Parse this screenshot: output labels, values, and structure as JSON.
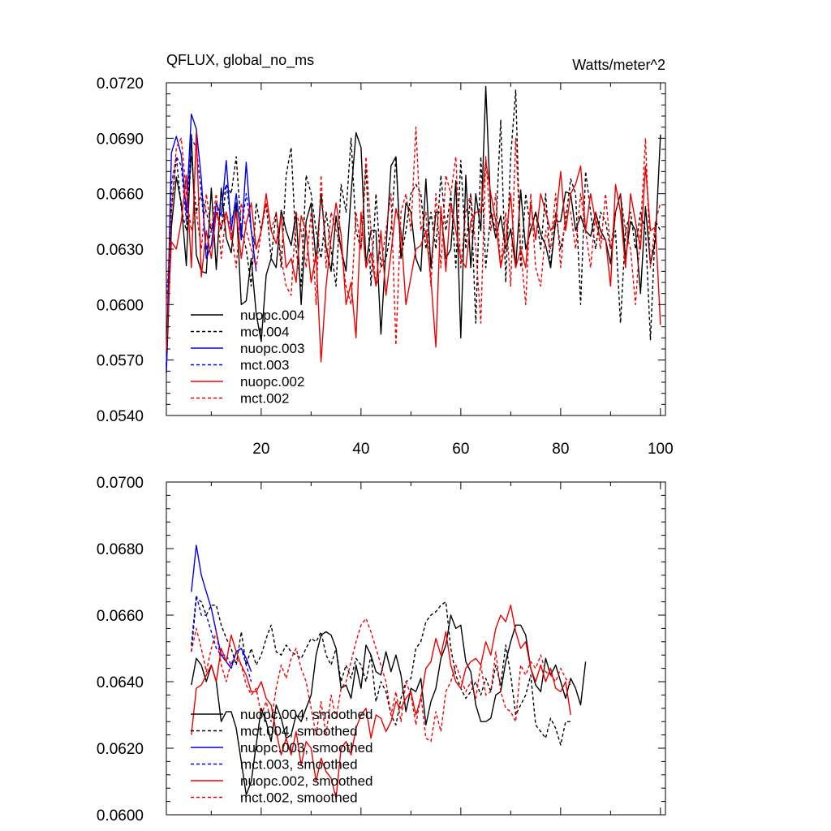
{
  "chart_data": [
    {
      "type": "line",
      "title_left": "QFLUX, global_no_ms",
      "title_right": "Watts/meter^2",
      "xlim": [
        1,
        101
      ],
      "ylim": [
        0.054,
        0.072
      ],
      "yticks": [
        "0.0540",
        "0.0570",
        "0.0600",
        "0.0630",
        "0.0660",
        "0.0690",
        "0.0720"
      ],
      "xticks": [
        "20",
        "40",
        "60",
        "80",
        "100"
      ],
      "legend": [
        "nuopc.004",
        "mct.004",
        "nuopc.003",
        "mct.003",
        "nuopc.002",
        "mct.002"
      ],
      "series": [
        {
          "name": "nuopc.004",
          "color": "#000000",
          "dash": false,
          "x_start": 1,
          "values": [
            0.0563,
            0.0642,
            0.0669,
            0.0655,
            0.0621,
            0.0692,
            0.0627,
            0.0618,
            0.0617,
            0.0663,
            0.0619,
            0.0663,
            0.0636,
            0.0628,
            0.0655,
            0.06,
            0.0602,
            0.0625,
            0.0595,
            0.058,
            0.0616,
            0.0625,
            0.062,
            0.0651,
            0.064,
            0.0632,
            0.065,
            0.06,
            0.0645,
            0.0655,
            0.0623,
            0.066,
            0.0631,
            0.0618,
            0.0648,
            0.063,
            0.0618,
            0.066,
            0.0693,
            0.0685,
            0.0622,
            0.064,
            0.064,
            0.0584,
            0.063,
            0.0675,
            0.068,
            0.0625,
            0.0655,
            0.065,
            0.0625,
            0.0618,
            0.0668,
            0.062,
            0.065,
            0.065,
            0.0625,
            0.063,
            0.0667,
            0.0582,
            0.067,
            0.062,
            0.066,
            0.064,
            0.0718,
            0.065,
            0.0636,
            0.0648,
            0.063,
            0.0641,
            0.062,
            0.0662,
            0.063,
            0.064,
            0.065,
            0.0638,
            0.0632,
            0.062,
            0.0645,
            0.0645,
            0.0661,
            0.066,
            0.064,
            0.0648,
            0.064,
            0.0637,
            0.065,
            0.064,
            0.0635,
            0.0622,
            0.065,
            0.066,
            0.0625,
            0.0645,
            0.064,
            0.0606,
            0.0653,
            0.0622,
            0.0635,
            0.0692
          ]
        },
        {
          "name": "mct.004",
          "color": "#000000",
          "dash": true,
          "x_start": 1,
          "values": [
            0.0567,
            0.065,
            0.068,
            0.0652,
            0.064,
            0.068,
            0.065,
            0.066,
            0.065,
            0.064,
            0.065,
            0.064,
            0.0665,
            0.066,
            0.068,
            0.064,
            0.063,
            0.061,
            0.0655,
            0.064,
            0.0655,
            0.0625,
            0.065,
            0.062,
            0.067,
            0.0685,
            0.063,
            0.061,
            0.067,
            0.066,
            0.064,
            0.0625,
            0.065,
            0.063,
            0.061,
            0.0665,
            0.065,
            0.069,
            0.064,
            0.063,
            0.0675,
            0.061,
            0.066,
            0.062,
            0.0625,
            0.064,
            0.068,
            0.0625,
            0.064,
            0.066,
            0.0665,
            0.066,
            0.063,
            0.065,
            0.063,
            0.067,
            0.064,
            0.066,
            0.062,
            0.0678,
            0.063,
            0.066,
            0.059,
            0.068,
            0.062,
            0.065,
            0.064,
            0.07,
            0.0612,
            0.068,
            0.0716,
            0.062,
            0.066,
            0.064,
            0.065,
            0.063,
            0.066,
            0.062,
            0.065,
            0.063,
            0.0645,
            0.0668,
            0.066,
            0.06,
            0.0672,
            0.065,
            0.063,
            0.065,
            0.0645,
            0.063,
            0.064,
            0.059,
            0.064,
            0.065,
            0.063,
            0.065,
            0.064,
            0.0581,
            0.0645,
            0.064
          ]
        },
        {
          "name": "nuopc.003",
          "color": "#0000ee",
          "dash": false,
          "x_start": 1,
          "values": [
            0.0565,
            0.0682,
            0.0691,
            0.0681,
            0.065,
            0.0703,
            0.0695,
            0.0668,
            0.0625,
            0.0632,
            0.0655,
            0.0648,
            0.0678,
            0.064,
            0.066,
            0.0635,
            0.0677,
            0.064,
            0.0618
          ]
        },
        {
          "name": "mct.003",
          "color": "#0000ee",
          "dash": true,
          "x_start": 1,
          "values": [
            0.0567,
            0.0665,
            0.068,
            0.0675,
            0.0645,
            0.069,
            0.0685,
            0.066,
            0.063,
            0.064,
            0.065,
            0.0655,
            0.0665,
            0.0645,
            0.0655,
            0.064,
            0.066,
            0.064,
            0.063
          ]
        },
        {
          "name": "nuopc.002",
          "color": "#ee0000",
          "dash": false,
          "x_start": 1,
          "values": [
            0.0575,
            0.0634,
            0.063,
            0.0645,
            0.067,
            0.062,
            0.0693,
            0.0615,
            0.064,
            0.0625,
            0.065,
            0.0642,
            0.065,
            0.0635,
            0.065,
            0.0625,
            0.0644,
            0.0655,
            0.063,
            0.064,
            0.066,
            0.064,
            0.0633,
            0.0648,
            0.062,
            0.0625,
            0.0612,
            0.0648,
            0.064,
            0.0612,
            0.0627,
            0.0569,
            0.061,
            0.0636,
            0.0655,
            0.0638,
            0.06,
            0.0612,
            0.0582,
            0.065,
            0.062,
            0.0628,
            0.061,
            0.064,
            0.0605,
            0.0628,
            0.0652,
            0.064,
            0.06,
            0.0615,
            0.063,
            0.0632,
            0.064,
            0.0614,
            0.0577,
            0.0653,
            0.0618,
            0.0655,
            0.064,
            0.0625,
            0.062,
            0.0645,
            0.065,
            0.065,
            0.0678,
            0.066,
            0.0645,
            0.062,
            0.0635,
            0.066,
            0.062,
            0.063,
            0.062,
            0.0655,
            0.0635,
            0.066,
            0.065,
            0.064,
            0.0645,
            0.0672,
            0.064,
            0.066,
            0.0665,
            0.0675,
            0.064,
            0.066,
            0.0645,
            0.0636,
            0.0635,
            0.061,
            0.0665,
            0.065,
            0.062,
            0.066,
            0.0645,
            0.063,
            0.0675,
            0.064,
            0.0642,
            0.0589
          ]
        },
        {
          "name": "mct.002",
          "color": "#ee0000",
          "dash": true,
          "x_start": 1,
          "values": [
            0.06,
            0.065,
            0.0685,
            0.069,
            0.066,
            0.064,
            0.065,
            0.063,
            0.066,
            0.064,
            0.066,
            0.0625,
            0.065,
            0.064,
            0.062,
            0.0655,
            0.064,
            0.063,
            0.062,
            0.064,
            0.0655,
            0.064,
            0.065,
            0.0625,
            0.061,
            0.0605,
            0.065,
            0.064,
            0.062,
            0.065,
            0.06,
            0.067,
            0.062,
            0.065,
            0.064,
            0.063,
            0.061,
            0.06,
            0.065,
            0.063,
            0.068,
            0.064,
            0.061,
            0.062,
            0.064,
            0.066,
            0.0578,
            0.065,
            0.066,
            0.064,
            0.0696,
            0.064,
            0.065,
            0.061,
            0.066,
            0.062,
            0.067,
            0.066,
            0.068,
            0.062,
            0.065,
            0.066,
            0.063,
            0.059,
            0.068,
            0.064,
            0.066,
            0.062,
            0.065,
            0.061,
            0.069,
            0.063,
            0.06,
            0.066,
            0.062,
            0.061,
            0.064,
            0.063,
            0.066,
            0.062,
            0.065,
            0.065,
            0.063,
            0.066,
            0.064,
            0.062,
            0.065,
            0.063,
            0.066,
            0.063,
            0.065,
            0.066,
            0.064,
            0.063,
            0.06,
            0.064,
            0.069,
            0.062,
            0.0645,
            0.0655
          ]
        }
      ]
    },
    {
      "type": "line",
      "xlim": [
        1,
        101
      ],
      "ylim": [
        0.06,
        0.07
      ],
      "yticks": [
        "0.0600",
        "0.0620",
        "0.0640",
        "0.0660",
        "0.0680",
        "0.0700"
      ],
      "legend": [
        "nuopc.004, smoothed",
        "mct.004, smoothed",
        "nuopc.003, smoothed",
        "mct.003, smoothed",
        "nuopc.002, smoothed",
        "mct.002, smoothed"
      ],
      "series": [
        {
          "name": "nuopc.004, smoothed",
          "color": "#000000",
          "dash": false,
          "x_start": 6,
          "values": [
            0.0639,
            0.0647,
            0.0645,
            0.064,
            0.0645,
            0.064,
            0.0628,
            0.0631,
            0.0631,
            0.0626,
            0.0616,
            0.0606,
            0.061,
            0.0621,
            0.0632,
            0.0628,
            0.0622,
            0.0633,
            0.0629,
            0.0623,
            0.0624,
            0.063,
            0.0628,
            0.0632,
            0.0636,
            0.0648,
            0.0654,
            0.0655,
            0.0654,
            0.065,
            0.0638,
            0.0639,
            0.0635,
            0.0645,
            0.0638,
            0.0651,
            0.0648,
            0.0643,
            0.0642,
            0.0649,
            0.0643,
            0.0648,
            0.0642,
            0.0631,
            0.0638,
            0.0637,
            0.0641,
            0.0627,
            0.0634,
            0.0638,
            0.0647,
            0.0651,
            0.066,
            0.0656,
            0.0657,
            0.0646,
            0.0643,
            0.0633,
            0.0628,
            0.0628,
            0.0629,
            0.0636,
            0.0637,
            0.0646,
            0.0652,
            0.0657,
            0.0657,
            0.0654,
            0.0644,
            0.0639,
            0.0637,
            0.0647,
            0.0642,
            0.0645,
            0.064,
            0.0635,
            0.0641,
            0.0638,
            0.0633,
            0.0646
          ]
        },
        {
          "name": "mct.004, smoothed",
          "color": "#000000",
          "dash": true,
          "x_start": 6,
          "values": [
            0.0649,
            0.0665,
            0.0664,
            0.066,
            0.0663,
            0.0663,
            0.0657,
            0.0653,
            0.065,
            0.0645,
            0.0655,
            0.0645,
            0.065,
            0.0645,
            0.0648,
            0.0653,
            0.0657,
            0.0649,
            0.0648,
            0.0651,
            0.0649,
            0.0648,
            0.0647,
            0.065,
            0.0653,
            0.0652,
            0.0655,
            0.0648,
            0.0645,
            0.065,
            0.064,
            0.0645,
            0.0641,
            0.0647,
            0.0645,
            0.064,
            0.0648,
            0.0634,
            0.064,
            0.0637,
            0.063,
            0.0627,
            0.0635,
            0.064,
            0.0641,
            0.065,
            0.0652,
            0.0658,
            0.066,
            0.0661,
            0.0663,
            0.0664,
            0.065,
            0.0642,
            0.0638,
            0.0635,
            0.0637,
            0.064,
            0.0636,
            0.0641,
            0.0637,
            0.0645,
            0.0639,
            0.0651,
            0.0642,
            0.063,
            0.0633,
            0.0636,
            0.0642,
            0.0627,
            0.0625,
            0.0623,
            0.0629,
            0.0626,
            0.0621,
            0.0628,
            0.0628
          ]
        },
        {
          "name": "nuopc.003, smoothed",
          "color": "#0000ee",
          "dash": false,
          "x_start": 6,
          "values": [
            0.0667,
            0.0681,
            0.0672,
            0.0667,
            0.0662,
            0.0655,
            0.0648,
            0.0646,
            0.0644,
            0.0649,
            0.065,
            0.0647,
            0.0643
          ]
        },
        {
          "name": "mct.003, smoothed",
          "color": "#0000ee",
          "dash": true,
          "x_start": 6,
          "values": [
            0.0651,
            0.0666,
            0.066,
            0.066,
            0.0655,
            0.065,
            0.0648,
            0.0648,
            0.0645,
            0.0649,
            0.065,
            0.0645,
            0.064
          ]
        },
        {
          "name": "nuopc.002, smoothed",
          "color": "#ee0000",
          "dash": false,
          "x_start": 6,
          "values": [
            0.0624,
            0.0638,
            0.0639,
            0.0642,
            0.0645,
            0.064,
            0.065,
            0.0646,
            0.0654,
            0.0649,
            0.0645,
            0.0642,
            0.0637,
            0.0637,
            0.064,
            0.0635,
            0.0633,
            0.0625,
            0.0618,
            0.0623,
            0.0618,
            0.0625,
            0.0615,
            0.0622,
            0.062,
            0.061,
            0.0617,
            0.0613,
            0.0611,
            0.0605,
            0.062,
            0.0622,
            0.0618,
            0.0626,
            0.063,
            0.0632,
            0.0623,
            0.063,
            0.0629,
            0.0625,
            0.0628,
            0.0634,
            0.0632,
            0.0635,
            0.0637,
            0.063,
            0.0635,
            0.0644,
            0.0646,
            0.0653,
            0.0648,
            0.0655,
            0.0645,
            0.064,
            0.0638,
            0.0644,
            0.0646,
            0.0647,
            0.0645,
            0.0652,
            0.0648,
            0.0656,
            0.066,
            0.0658,
            0.0663,
            0.0655,
            0.065,
            0.0652,
            0.0644,
            0.064,
            0.0645,
            0.064,
            0.0644,
            0.0638,
            0.0637,
            0.064,
            0.063
          ]
        },
        {
          "name": "mct.002, smoothed",
          "color": "#ee0000",
          "dash": true,
          "x_start": 6,
          "values": [
            0.0649,
            0.0656,
            0.065,
            0.0643,
            0.065,
            0.0655,
            0.0645,
            0.064,
            0.0646,
            0.0647,
            0.0645,
            0.0639,
            0.0636,
            0.0638,
            0.063,
            0.0634,
            0.0628,
            0.0638,
            0.0645,
            0.0641,
            0.0647,
            0.065,
            0.0644,
            0.064,
            0.0632,
            0.0624,
            0.0634,
            0.0624,
            0.0636,
            0.0629,
            0.0638,
            0.064,
            0.0646,
            0.0652,
            0.0657,
            0.0659,
            0.0655,
            0.065,
            0.0645,
            0.064,
            0.063,
            0.0637,
            0.0628,
            0.064,
            0.0636,
            0.0627,
            0.0636,
            0.0623,
            0.0622,
            0.0631,
            0.0625,
            0.0637,
            0.064,
            0.0645,
            0.0641,
            0.0637,
            0.064,
            0.0635,
            0.0645,
            0.0636,
            0.0637,
            0.0649,
            0.0637,
            0.0632,
            0.0631,
            0.0628,
            0.0645,
            0.0642,
            0.0646,
            0.0644,
            0.0648,
            0.0643,
            0.0642,
            0.064,
            0.0644,
            0.0641,
            0.0639
          ]
        }
      ]
    }
  ]
}
